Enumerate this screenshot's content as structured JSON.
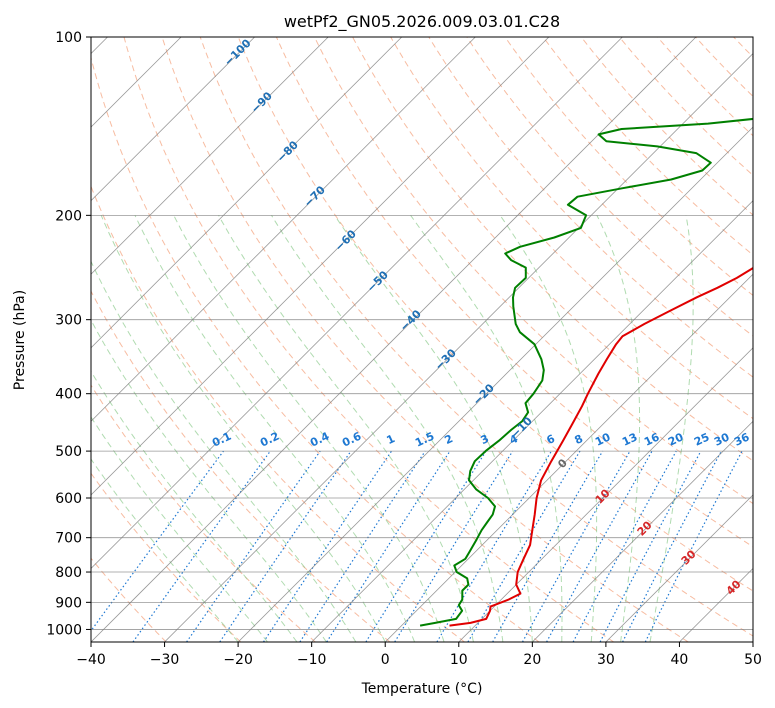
{
  "chart_data": {
    "type": "line",
    "title": "wetPf2_GN05.2026.009.03.01.C28",
    "xlabel": "Temperature (°C)",
    "ylabel": "Pressure (hPa)",
    "xlim": [
      -40,
      50
    ],
    "ylim": [
      1050,
      100
    ],
    "yscale": "log",
    "grid": true,
    "x_ticks": [
      -40,
      -30,
      -20,
      -10,
      0,
      10,
      20,
      30,
      40,
      50
    ],
    "x_tick_labels": [
      "−40",
      "−30",
      "−20",
      "−10",
      "0",
      "10",
      "20",
      "30",
      "40",
      "50"
    ],
    "y_ticks": [
      1000,
      900,
      800,
      700,
      600,
      500,
      400,
      300,
      200,
      100
    ],
    "y_tick_labels": [
      "1000",
      "900",
      "800",
      "700",
      "600",
      "500",
      "400",
      "300",
      "200",
      "100"
    ],
    "skew": "skew-T log-p",
    "series": [
      {
        "role": "temperature",
        "color": "#e00000",
        "points": [
          [
            6.5,
            985
          ],
          [
            9.0,
            975
          ],
          [
            10.6,
            960
          ],
          [
            10.0,
            930
          ],
          [
            9.5,
            915
          ],
          [
            11.0,
            890
          ],
          [
            11.8,
            870
          ],
          [
            10.0,
            840
          ],
          [
            8.5,
            800
          ],
          [
            7.5,
            760
          ],
          [
            6.5,
            720
          ],
          [
            4.8,
            680
          ],
          [
            3.0,
            640
          ],
          [
            1.0,
            600
          ],
          [
            -0.8,
            560
          ],
          [
            -2.0,
            520
          ],
          [
            -3.2,
            480
          ],
          [
            -4.2,
            450
          ],
          [
            -5.3,
            420
          ],
          [
            -6.2,
            400
          ],
          [
            -7.5,
            370
          ],
          [
            -8.3,
            350
          ],
          [
            -9.1,
            330
          ],
          [
            -9.3,
            320
          ],
          [
            -8.0,
            305
          ],
          [
            -6.3,
            290
          ],
          [
            -4.5,
            275
          ],
          [
            -3.0,
            265
          ],
          [
            -1.7,
            255
          ],
          [
            -0.8,
            245
          ],
          [
            -0.4,
            235
          ],
          [
            0.4,
            225
          ],
          [
            1.4,
            215
          ],
          [
            2.7,
            205
          ],
          [
            4.0,
            195
          ],
          [
            4.6,
            185
          ],
          [
            4.7,
            175
          ],
          [
            4.8,
            165
          ],
          [
            5.2,
            155
          ],
          [
            6.7,
            145
          ],
          [
            7.6,
            140
          ],
          [
            8.6,
            132
          ],
          [
            9.4,
            124
          ],
          [
            9.8,
            117
          ],
          [
            10.2,
            110
          ],
          [
            10.7,
            104
          ],
          [
            11.2,
            100
          ]
        ]
      },
      {
        "role": "dewpoint",
        "color": "#008000",
        "points": [
          [
            2.5,
            985
          ],
          [
            4.2,
            975
          ],
          [
            6.5,
            960
          ],
          [
            6.2,
            930
          ],
          [
            5.0,
            910
          ],
          [
            4.7,
            890
          ],
          [
            3.5,
            860
          ],
          [
            3.5,
            840
          ],
          [
            2.5,
            820
          ],
          [
            0.2,
            800
          ],
          [
            -1.0,
            780
          ],
          [
            -0.4,
            760
          ],
          [
            -0.8,
            740
          ],
          [
            -1.4,
            710
          ],
          [
            -2.1,
            680
          ],
          [
            -2.4,
            660
          ],
          [
            -2.7,
            640
          ],
          [
            -3.5,
            620
          ],
          [
            -5.6,
            600
          ],
          [
            -8.4,
            580
          ],
          [
            -10.6,
            560
          ],
          [
            -11.7,
            540
          ],
          [
            -12.4,
            520
          ],
          [
            -12.3,
            500
          ],
          [
            -11.9,
            480
          ],
          [
            -11.7,
            460
          ],
          [
            -11.4,
            445
          ],
          [
            -11.8,
            430
          ],
          [
            -13.4,
            415
          ],
          [
            -13.6,
            400
          ],
          [
            -14.2,
            380
          ],
          [
            -15.4,
            365
          ],
          [
            -17.2,
            350
          ],
          [
            -20.2,
            330
          ],
          [
            -23.8,
            315
          ],
          [
            -25.5,
            305
          ],
          [
            -28.2,
            285
          ],
          [
            -29.5,
            275
          ],
          [
            -30.5,
            265
          ],
          [
            -30.4,
            255
          ],
          [
            -31.8,
            245
          ],
          [
            -34.8,
            238
          ],
          [
            -36.5,
            232
          ],
          [
            -35.4,
            226
          ],
          [
            -32.0,
            218
          ],
          [
            -29.7,
            210
          ],
          [
            -30.7,
            200
          ],
          [
            -34.6,
            192
          ],
          [
            -34.4,
            186
          ],
          [
            -29.4,
            180
          ],
          [
            -24.0,
            174
          ],
          [
            -21.0,
            168
          ],
          [
            -20.9,
            163
          ],
          [
            -24.2,
            157
          ],
          [
            -30.4,
            153
          ],
          [
            -38.0,
            150
          ],
          [
            -40.0,
            146
          ],
          [
            -37.6,
            143
          ],
          [
            -26.6,
            140
          ],
          [
            -20.0,
            137
          ],
          [
            -16.0,
            133
          ],
          [
            -13.3,
            128
          ],
          [
            -11.6,
            122
          ],
          [
            -9.9,
            116
          ],
          [
            -8.7,
            110
          ],
          [
            -7.6,
            105
          ],
          [
            -7.0,
            100
          ]
        ]
      }
    ],
    "dry_adiabat_labels": [
      "−100",
      "−90",
      "−80",
      "−70",
      "−60",
      "−50",
      "−40",
      "−30",
      "−20",
      "−10",
      "0",
      "10",
      "20",
      "30",
      "40"
    ],
    "mixing_ratio_labels": [
      "0.1",
      "0.2",
      "0.4",
      "0.6",
      "1",
      "1.5",
      "2",
      "3",
      "4",
      "6",
      "8",
      "10",
      "13",
      "16",
      "20",
      "25",
      "30",
      "36"
    ],
    "colors": {
      "dry_adiabat": "#f4a582",
      "moist_adiabat": "#8fcc8f",
      "mixing_ratio": "#1e78d2",
      "dry_adiabat_label": "#1f6fb4",
      "warm_adiabat_label": "#d62728",
      "isotherm": "#7f7f7f",
      "isobar": "#7f7f7f"
    }
  }
}
